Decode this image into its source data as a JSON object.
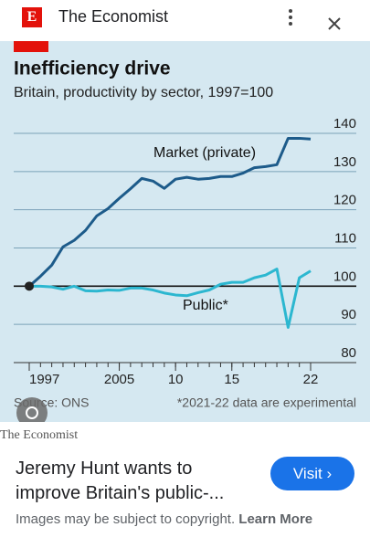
{
  "header": {
    "logo": "E",
    "site": "The Economist"
  },
  "chart_data": {
    "type": "line",
    "title": "Inefficiency drive",
    "subtitle": "Britain, productivity by sector, 1997=100",
    "x": [
      1997,
      1998,
      1999,
      2000,
      2001,
      2002,
      2003,
      2004,
      2005,
      2006,
      2007,
      2008,
      2009,
      2010,
      2011,
      2012,
      2013,
      2014,
      2015,
      2016,
      2017,
      2018,
      2019,
      2020,
      2021,
      2022
    ],
    "series": [
      {
        "name": "Market (private)",
        "color": "#1d5b8a",
        "values": [
          100,
          102.6,
          105.5,
          110.3,
          112,
          114.6,
          118.4,
          120.3,
          123,
          125.5,
          128.2,
          127.5,
          125.6,
          128,
          128.5,
          128,
          128.2,
          128.7,
          128.7,
          129.6,
          131,
          131.3,
          131.8,
          138.7,
          138.7,
          138.5
        ]
      },
      {
        "name": "Public*",
        "color": "#2cb7d0",
        "values": [
          100,
          100,
          99.8,
          99.2,
          100,
          98.8,
          98.7,
          99,
          98.9,
          99.5,
          99.5,
          99,
          98.2,
          97.7,
          97.5,
          98.3,
          99,
          100.5,
          101,
          101,
          102.2,
          102.9,
          104.5,
          89.2,
          102.2,
          104
        ]
      }
    ],
    "xlim": [
      1997,
      2022
    ],
    "xticks": [
      1997,
      2005,
      {
        "value": 2010,
        "label": "10"
      },
      {
        "value": 2015,
        "label": "15"
      },
      {
        "value": 2022,
        "label": "22"
      }
    ],
    "ylim": [
      80,
      140
    ],
    "yticks": [
      80,
      90,
      100,
      110,
      120,
      130,
      140
    ],
    "baseline": 100,
    "grid": true,
    "source": "Source: ONS",
    "note": "*2021-22 data are experimental"
  },
  "caption": {
    "source": "The Economist",
    "title": "Jeremy Hunt wants to improve Britain's public-...",
    "button": "Visit",
    "notice": "Images may be subject to copyright.",
    "link": "Learn More"
  }
}
